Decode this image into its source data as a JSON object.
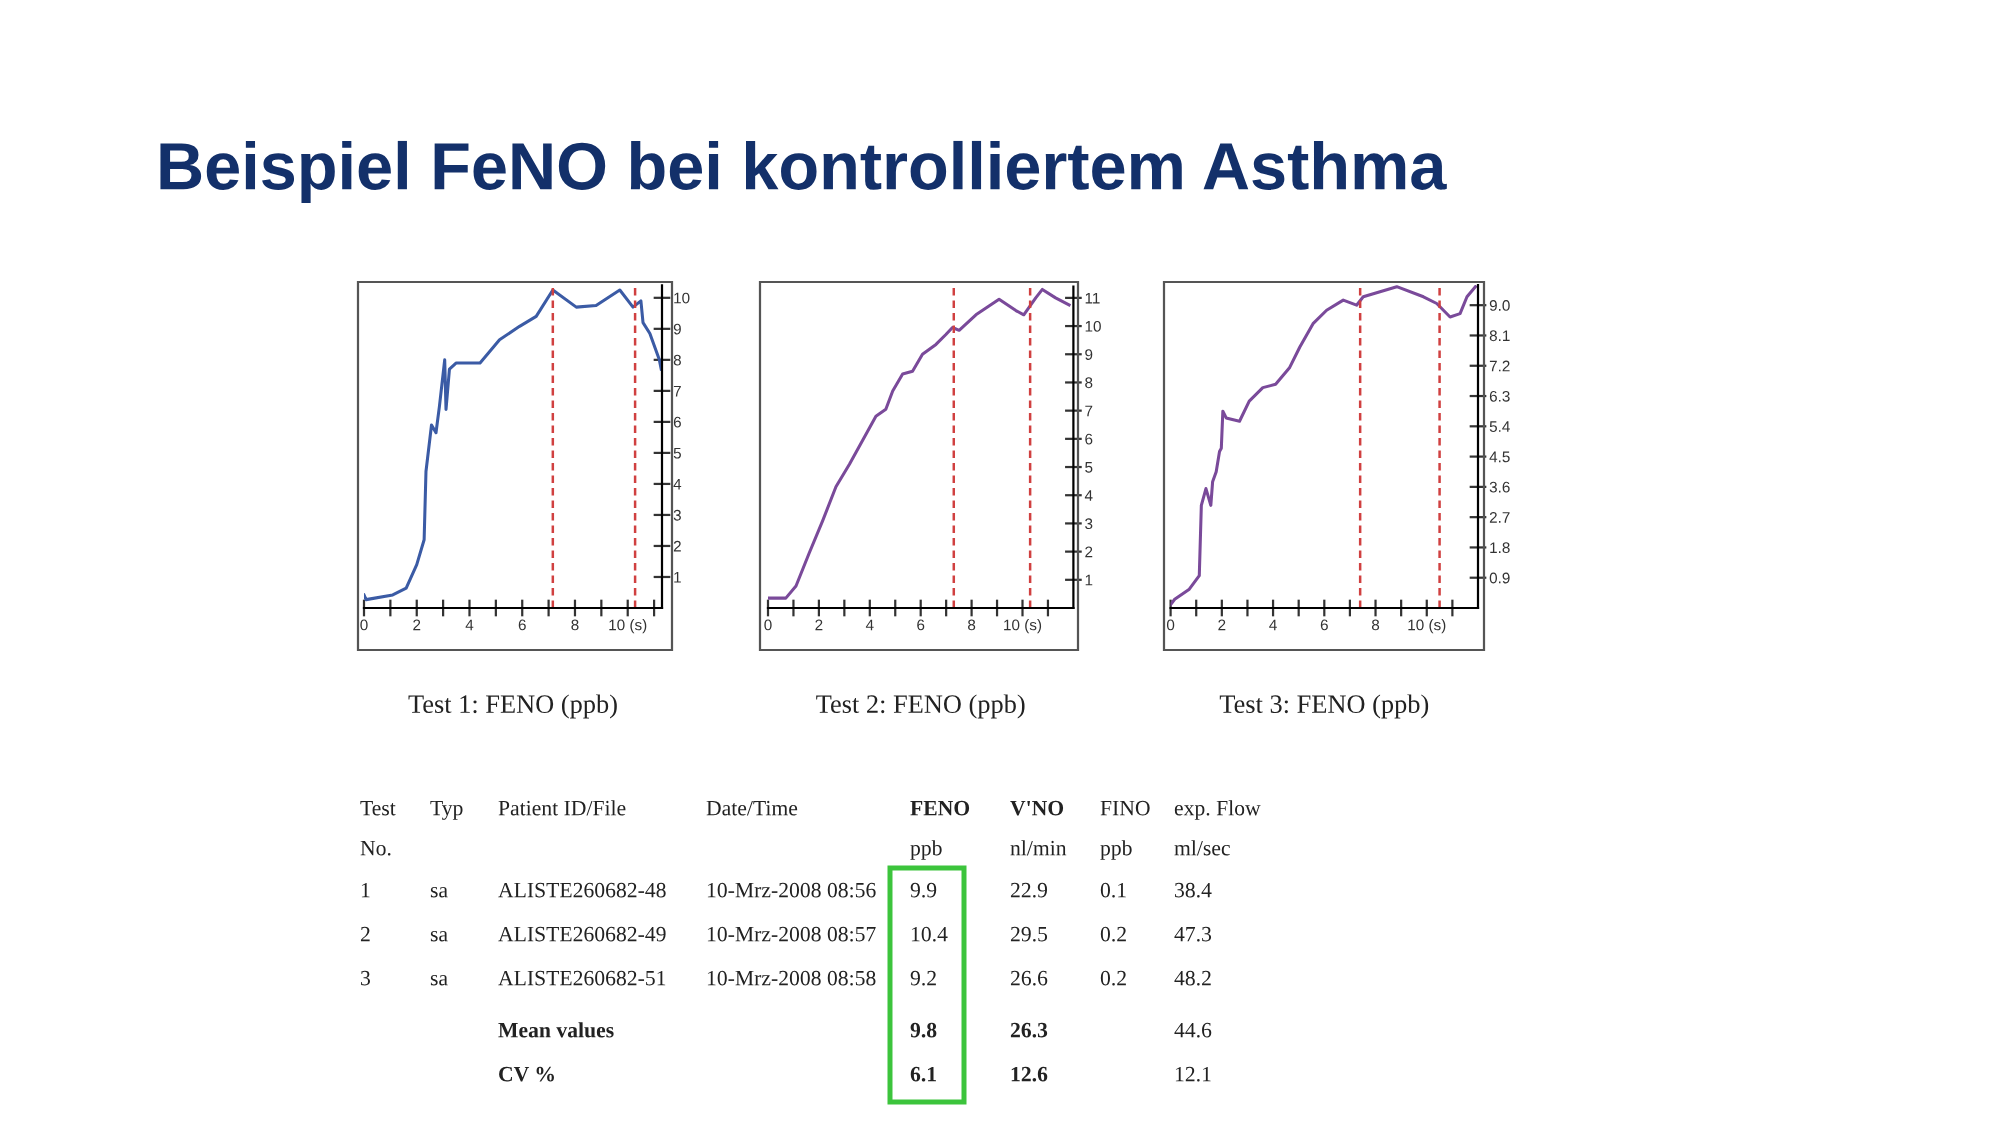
{
  "chart_data": [
    {
      "type": "line",
      "title": "Beispiel FeNO bei kontrolliertem Asthma",
      "xlabel": "Test 1: FENO (ppb)",
      "xlim": [
        0,
        11.3
      ],
      "ylim": [
        0,
        10.4
      ],
      "xticks": [
        0,
        {
          "value": 1,
          "label": null
        },
        2,
        {
          "value": 3,
          "label": null
        },
        4,
        {
          "value": 5,
          "label": null
        },
        6,
        {
          "value": 7,
          "label": null
        },
        8,
        {
          "value": 9,
          "label": null
        },
        {
          "value": 10,
          "label": "10 (s)"
        },
        {
          "value": 11,
          "label": null
        }
      ],
      "yticks": [
        1,
        2,
        3,
        4,
        5,
        6,
        7,
        8,
        9,
        10
      ],
      "ref_lines": [
        {
          "axis": "x",
          "value": 7.16,
          "color": "#d04040",
          "line_style": "dashed"
        },
        {
          "axis": "x",
          "value": 10.28,
          "color": "#d04040",
          "line_style": "dashed"
        }
      ],
      "series": [
        {
          "color": "#3b5ba5",
          "x": [
            0,
            0.08,
            1.09,
            1.6,
            2.0,
            2.28,
            2.35,
            2.56,
            2.73,
            2.86,
            3.06,
            3.11,
            3.24,
            3.5,
            4.13,
            4.4,
            5.14,
            5.9,
            6.53,
            7.16,
            8.05,
            8.8,
            9.7,
            10.2,
            10.5,
            10.58,
            10.84,
            11.2,
            11.27
          ],
          "values": [
            0.42,
            0.27,
            0.42,
            0.64,
            1.4,
            2.2,
            4.4,
            5.9,
            5.65,
            6.5,
            8.0,
            6.4,
            7.7,
            7.9,
            7.9,
            7.9,
            8.65,
            9.08,
            9.4,
            10.25,
            9.7,
            9.75,
            10.25,
            9.7,
            9.9,
            9.2,
            8.85,
            8.0,
            7.7
          ]
        }
      ]
    },
    {
      "type": "line",
      "xlabel": "Test 2: FENO (ppb)",
      "xlim": [
        0,
        12
      ],
      "ylim": [
        0,
        11.4
      ],
      "xticks": [
        0,
        {
          "value": 1,
          "label": null
        },
        2,
        {
          "value": 3,
          "label": null
        },
        4,
        {
          "value": 5,
          "label": null
        },
        6,
        {
          "value": 7,
          "label": null
        },
        8,
        {
          "value": 9,
          "label": null
        },
        {
          "value": 10,
          "label": "10 (s)"
        },
        {
          "value": 11,
          "label": null
        }
      ],
      "yticks": [
        1,
        2,
        3,
        4,
        5,
        6,
        7,
        8,
        9,
        10,
        11
      ],
      "ref_lines": [
        {
          "axis": "x",
          "value": 7.3,
          "color": "#d04040",
          "line_style": "dashed"
        },
        {
          "axis": "x",
          "value": 10.3,
          "color": "#d04040",
          "line_style": "dashed"
        }
      ],
      "series": [
        {
          "color": "#7a4a9a",
          "x": [
            0,
            0.7,
            1.1,
            1.62,
            2.15,
            2.67,
            3.2,
            3.72,
            4.24,
            4.63,
            4.9,
            5.29,
            5.68,
            6.07,
            6.6,
            6.99,
            7.25,
            7.51,
            8.17,
            9.08,
            9.74,
            10.05,
            10.52,
            10.78,
            11.3,
            11.83
          ],
          "values": [
            0.35,
            0.35,
            0.78,
            1.95,
            3.1,
            4.3,
            5.1,
            5.95,
            6.8,
            7.05,
            7.7,
            8.3,
            8.4,
            9.0,
            9.35,
            9.7,
            9.95,
            9.85,
            10.4,
            10.95,
            10.55,
            10.4,
            11.0,
            11.3,
            11.0,
            10.75
          ]
        }
      ]
    },
    {
      "type": "line",
      "xlabel": "Test 3: FENO (ppb)",
      "xlim": [
        0,
        12
      ],
      "ylim": [
        0,
        9.6
      ],
      "xticks": [
        0,
        {
          "value": 1,
          "label": null
        },
        2,
        {
          "value": 3,
          "label": null
        },
        4,
        {
          "value": 5,
          "label": null
        },
        6,
        {
          "value": 7,
          "label": null
        },
        8,
        {
          "value": 9,
          "label": null
        },
        {
          "value": 10,
          "label": "10 (s)"
        },
        {
          "value": 11,
          "label": null
        }
      ],
      "yticks": [
        0.9,
        1.8,
        2.7,
        3.6,
        4.5,
        5.4,
        6.3,
        7.2,
        8.1,
        {
          "value": 9,
          "label": "9.0"
        }
      ],
      "ref_lines": [
        {
          "axis": "x",
          "value": 7.4,
          "color": "#d04040",
          "line_style": "dashed"
        },
        {
          "axis": "x",
          "value": 10.5,
          "color": "#d04040",
          "line_style": "dashed"
        }
      ],
      "series": [
        {
          "color": "#7a4a9a",
          "x": [
            0,
            0.16,
            0.73,
            1.12,
            1.2,
            1.38,
            1.57,
            1.64,
            1.78,
            1.91,
            1.98,
            2.04,
            2.17,
            2.69,
            3.07,
            3.6,
            4.1,
            4.65,
            5.04,
            5.56,
            6.09,
            6.74,
            7.26,
            7.52,
            8.83,
            9.87,
            10.39,
            10.91,
            11.3,
            11.57,
            11.9
          ],
          "values": [
            0.1,
            0.26,
            0.56,
            0.96,
            3.05,
            3.55,
            3.05,
            3.75,
            4.05,
            4.65,
            4.75,
            5.85,
            5.65,
            5.55,
            6.15,
            6.55,
            6.65,
            7.15,
            7.75,
            8.45,
            8.85,
            9.15,
            9.0,
            9.25,
            9.55,
            9.25,
            9.05,
            8.65,
            8.75,
            9.25,
            9.55
          ]
        }
      ]
    },
    {
      "type": "other",
      "annotations": [
        "Test\tTyp\tPatient ID/File\tDate/Time\tFENO\tV'NO\tFINO\texp. Flow",
        "No.\t\t\t\tppb\tnl/min\tppb\tml/sec",
        "1\tsa\tALISTE260682-48\t10-Mrz-2008 08:56\t9.9\t22.9\t0.1\t38.4",
        "2\tsa\tALISTE260682-49\t10-Mrz-2008 08:57\t10.4\t29.5\t0.2\t47.3",
        "3\tsa\tALISTE260682-51\t10-Mrz-2008 08:58\t9.2\t26.6\t0.2\t48.2",
        "\t\tMean values\t\t9.8\t26.3\t\t44.6",
        "\t\tCV %\t\t6.1\t12.6\t\t12.1"
      ]
    }
  ]
}
